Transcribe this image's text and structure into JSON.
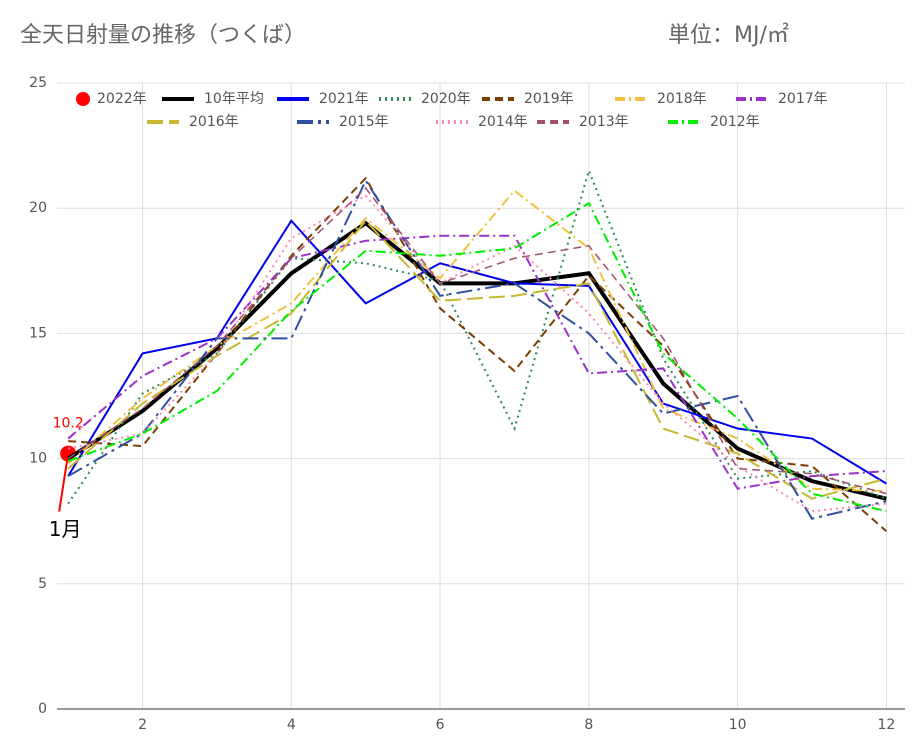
{
  "chart_data": {
    "type": "line",
    "title": "全天日射量の推移（つくば）",
    "unit_label": "単位：MJ/㎡",
    "annotation": "1月",
    "xlim": [
      0.85,
      12.25
    ],
    "xticks": [
      2,
      4,
      6,
      8,
      10,
      12
    ],
    "ylim": [
      0,
      25
    ],
    "yticks": [
      0,
      5,
      10,
      15,
      20,
      25
    ],
    "grid": true,
    "x": [
      1,
      2,
      3,
      4,
      5,
      6,
      7,
      8,
      9,
      10,
      11,
      12
    ],
    "series": [
      {
        "name": "2022年",
        "color": "#ff0000",
        "marker": "circle",
        "values": [
          10.2,
          null,
          null,
          null,
          null,
          null,
          null,
          null,
          null,
          null,
          null,
          null
        ]
      },
      {
        "name": "10年平均",
        "color": "#000000",
        "dash": "solid",
        "width": 4,
        "values": [
          10.0,
          11.9,
          14.4,
          17.4,
          19.4,
          17.0,
          17.0,
          17.4,
          13.0,
          10.4,
          9.1,
          8.4
        ]
      },
      {
        "name": "2021年",
        "color": "#0000ee",
        "dash": "solid",
        "width": 2,
        "values": [
          9.3,
          14.2,
          14.8,
          19.5,
          16.2,
          17.8,
          17.0,
          16.9,
          12.2,
          11.2,
          10.8,
          9.0
        ]
      },
      {
        "name": "2020年",
        "color": "#2e8b57",
        "dash": "dotted",
        "width": 2,
        "values": [
          8.2,
          12.6,
          14.2,
          18.0,
          17.8,
          17.1,
          11.2,
          21.5,
          14.0,
          9.2,
          9.5,
          8.4
        ]
      },
      {
        "name": "2019年",
        "color": "#7b3f00",
        "dash": "dashed",
        "width": 2,
        "values": [
          10.7,
          10.5,
          14.2,
          18.1,
          21.2,
          16.0,
          13.5,
          17.3,
          14.5,
          10.0,
          9.7,
          7.1
        ]
      },
      {
        "name": "2018年",
        "color": "#f0c040",
        "dash": "dashdot",
        "width": 2,
        "values": [
          9.8,
          12.4,
          14.5,
          16.2,
          19.6,
          17.2,
          20.7,
          18.4,
          12.0,
          10.8,
          8.8,
          8.7
        ]
      },
      {
        "name": "2017年",
        "color": "#9932cc",
        "dash": "dashdot",
        "width": 2,
        "values": [
          10.8,
          13.3,
          14.8,
          18.0,
          18.7,
          18.9,
          18.9,
          13.4,
          13.6,
          8.8,
          9.3,
          9.5
        ]
      },
      {
        "name": "2016年",
        "color": "#c8b830",
        "dash": "longdash",
        "width": 2,
        "values": [
          9.6,
          12.2,
          14.1,
          15.8,
          19.5,
          16.3,
          16.5,
          17.0,
          11.2,
          10.2,
          8.4,
          9.2
        ]
      },
      {
        "name": "2015年",
        "color": "#3050a0",
        "dash": "longdashdot",
        "width": 2,
        "values": [
          9.3,
          11.0,
          14.8,
          14.8,
          21.1,
          16.5,
          17.0,
          15.0,
          11.8,
          12.5,
          7.6,
          8.3
        ]
      },
      {
        "name": "2014年",
        "color": "#ff88bb",
        "dash": "dotted",
        "width": 2,
        "values": [
          10.4,
          11.0,
          14.2,
          18.8,
          20.5,
          17.0,
          18.5,
          15.8,
          12.2,
          9.7,
          7.9,
          8.2
        ]
      },
      {
        "name": "2013年",
        "color": "#a05070",
        "dash": "dashed",
        "width": 1.5,
        "values": [
          10.0,
          12.0,
          14.5,
          18.0,
          20.8,
          17.0,
          18.0,
          18.5,
          14.8,
          9.6,
          9.4,
          8.6
        ]
      },
      {
        "name": "2012年",
        "color": "#00ee00",
        "dash": "dashdot",
        "width": 2,
        "values": [
          9.9,
          11.0,
          12.7,
          15.9,
          18.3,
          18.1,
          18.4,
          20.2,
          14.2,
          11.6,
          8.6,
          7.9
        ]
      }
    ]
  }
}
